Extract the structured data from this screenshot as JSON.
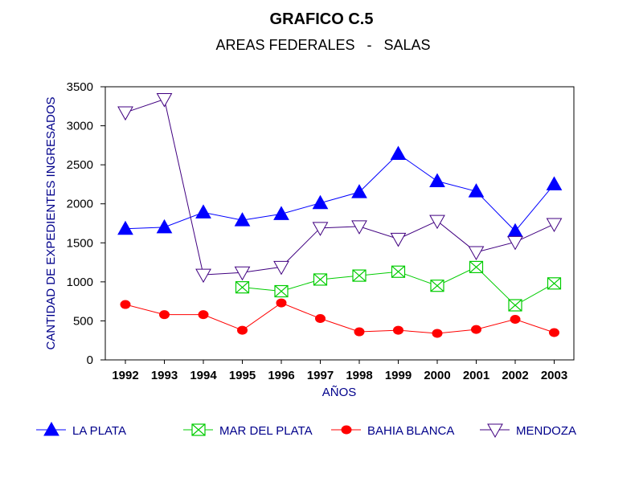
{
  "chart_data": {
    "type": "line",
    "title": "GRAFICO C.5",
    "subtitle": "AREAS FEDERALES   -   SALAS",
    "xlabel": "AÑOS",
    "ylabel": "CANTIDAD DE EXPEDIENTES INGRESADOS",
    "ylim": [
      0,
      3500
    ],
    "yticks": [
      0,
      500,
      1000,
      1500,
      2000,
      2500,
      3000,
      3500
    ],
    "categories": [
      "1992",
      "1993",
      "1994",
      "1995",
      "1996",
      "1997",
      "1998",
      "1999",
      "2000",
      "2001",
      "2002",
      "2003"
    ],
    "grid": false,
    "legend_position": "bottom",
    "series": [
      {
        "name": "LA PLATA",
        "color": "#0000ff",
        "marker": "triangle-up",
        "values": [
          1680,
          1700,
          1890,
          1790,
          1870,
          2010,
          2150,
          2640,
          2290,
          2160,
          1650,
          2250
        ]
      },
      {
        "name": "MAR DEL PLATA",
        "color": "#00cc00",
        "marker": "box-x",
        "values": [
          null,
          null,
          null,
          930,
          880,
          1030,
          1080,
          1130,
          950,
          1190,
          700,
          980
        ]
      },
      {
        "name": "BAHIA BLANCA",
        "color": "#ff0000",
        "marker": "circle",
        "values": [
          710,
          580,
          580,
          380,
          730,
          530,
          360,
          380,
          340,
          390,
          520,
          350
        ]
      },
      {
        "name": "MENDOZA",
        "color": "#400080",
        "marker": "triangle-down",
        "values": [
          3170,
          3340,
          1090,
          1120,
          1190,
          1690,
          1710,
          1550,
          1780,
          1380,
          1510,
          1740
        ]
      }
    ]
  }
}
